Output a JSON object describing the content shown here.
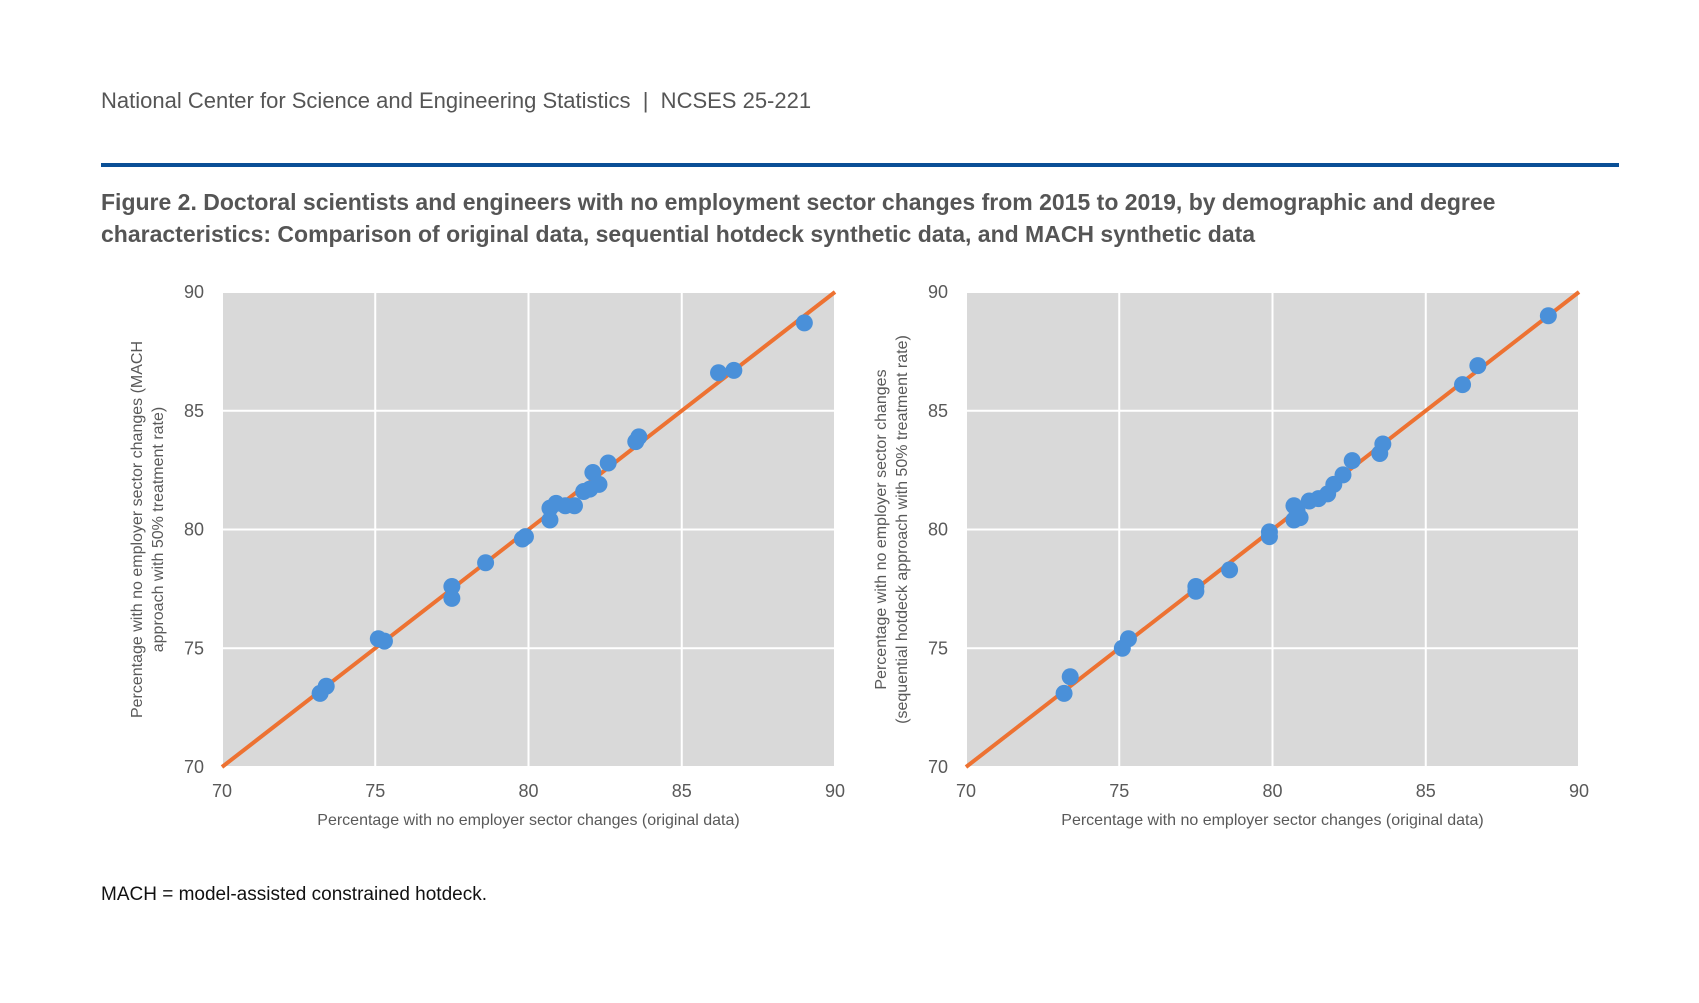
{
  "header": {
    "text": "National Center for Science and Engineering Statistics  |  NCSES 25-221"
  },
  "title": "Figure 2. Doctoral scientists and engineers with no employment sector changes from 2015 to 2019, by demographic and degree characteristics: Comparison of original data, sequential hotdeck synthetic data, and MACH synthetic data",
  "footnote": "MACH = model-assisted constrained hotdeck.",
  "colors": {
    "point": "#4a90d9",
    "line": "#ed7232",
    "plot_bg": "#d9d9d9",
    "rule": "#0a4f96"
  },
  "chart_data": [
    {
      "type": "scatter",
      "xlabel": "Percentage with no employer sector changes (original data)",
      "ylabel": [
        "Percentage with no employer sector changes (MACH",
        "approach with 50% treatment rate)"
      ],
      "xlim": [
        70,
        90
      ],
      "ylim": [
        70,
        90
      ],
      "xticks": [
        "70",
        "75",
        "80",
        "85",
        "90"
      ],
      "yticks": [
        "70",
        "75",
        "80",
        "85",
        "90"
      ],
      "grid": true,
      "reference_line": [
        [
          70,
          70
        ],
        [
          90,
          90
        ]
      ],
      "points": [
        [
          73.2,
          73.1
        ],
        [
          73.4,
          73.4
        ],
        [
          75.1,
          75.4
        ],
        [
          75.3,
          75.3
        ],
        [
          77.5,
          77.6
        ],
        [
          77.5,
          77.1
        ],
        [
          78.6,
          78.6
        ],
        [
          79.8,
          79.6
        ],
        [
          79.9,
          79.7
        ],
        [
          80.7,
          80.9
        ],
        [
          80.7,
          80.4
        ],
        [
          80.9,
          81.1
        ],
        [
          81.2,
          81.0
        ],
        [
          81.5,
          81.0
        ],
        [
          81.8,
          81.6
        ],
        [
          82.0,
          81.7
        ],
        [
          82.1,
          82.4
        ],
        [
          82.3,
          81.9
        ],
        [
          82.6,
          82.8
        ],
        [
          83.5,
          83.7
        ],
        [
          83.6,
          83.9
        ],
        [
          86.2,
          86.6
        ],
        [
          86.7,
          86.7
        ],
        [
          89.0,
          88.7
        ]
      ]
    },
    {
      "type": "scatter",
      "xlabel": "Percentage with no employer sector changes (original data)",
      "ylabel": [
        "Percentage with no employer sector changes",
        "(sequential hotdeck approach with 50% treatment rate)"
      ],
      "xlim": [
        70,
        90
      ],
      "ylim": [
        70,
        90
      ],
      "xticks": [
        "70",
        "75",
        "80",
        "85",
        "90"
      ],
      "yticks": [
        "70",
        "75",
        "80",
        "85",
        "90"
      ],
      "grid": true,
      "reference_line": [
        [
          70,
          70
        ],
        [
          90,
          90
        ]
      ],
      "points": [
        [
          73.2,
          73.1
        ],
        [
          73.4,
          73.8
        ],
        [
          75.1,
          75.0
        ],
        [
          75.3,
          75.4
        ],
        [
          77.5,
          77.6
        ],
        [
          77.5,
          77.4
        ],
        [
          78.6,
          78.3
        ],
        [
          79.9,
          79.9
        ],
        [
          79.9,
          79.7
        ],
        [
          80.7,
          81.0
        ],
        [
          80.7,
          80.4
        ],
        [
          80.9,
          80.5
        ],
        [
          80.8,
          80.8
        ],
        [
          81.2,
          81.2
        ],
        [
          81.5,
          81.3
        ],
        [
          81.8,
          81.5
        ],
        [
          82.0,
          81.9
        ],
        [
          82.3,
          82.3
        ],
        [
          82.6,
          82.9
        ],
        [
          83.5,
          83.2
        ],
        [
          83.6,
          83.6
        ],
        [
          86.2,
          86.1
        ],
        [
          86.7,
          86.9
        ],
        [
          89.0,
          89.0
        ]
      ]
    }
  ]
}
